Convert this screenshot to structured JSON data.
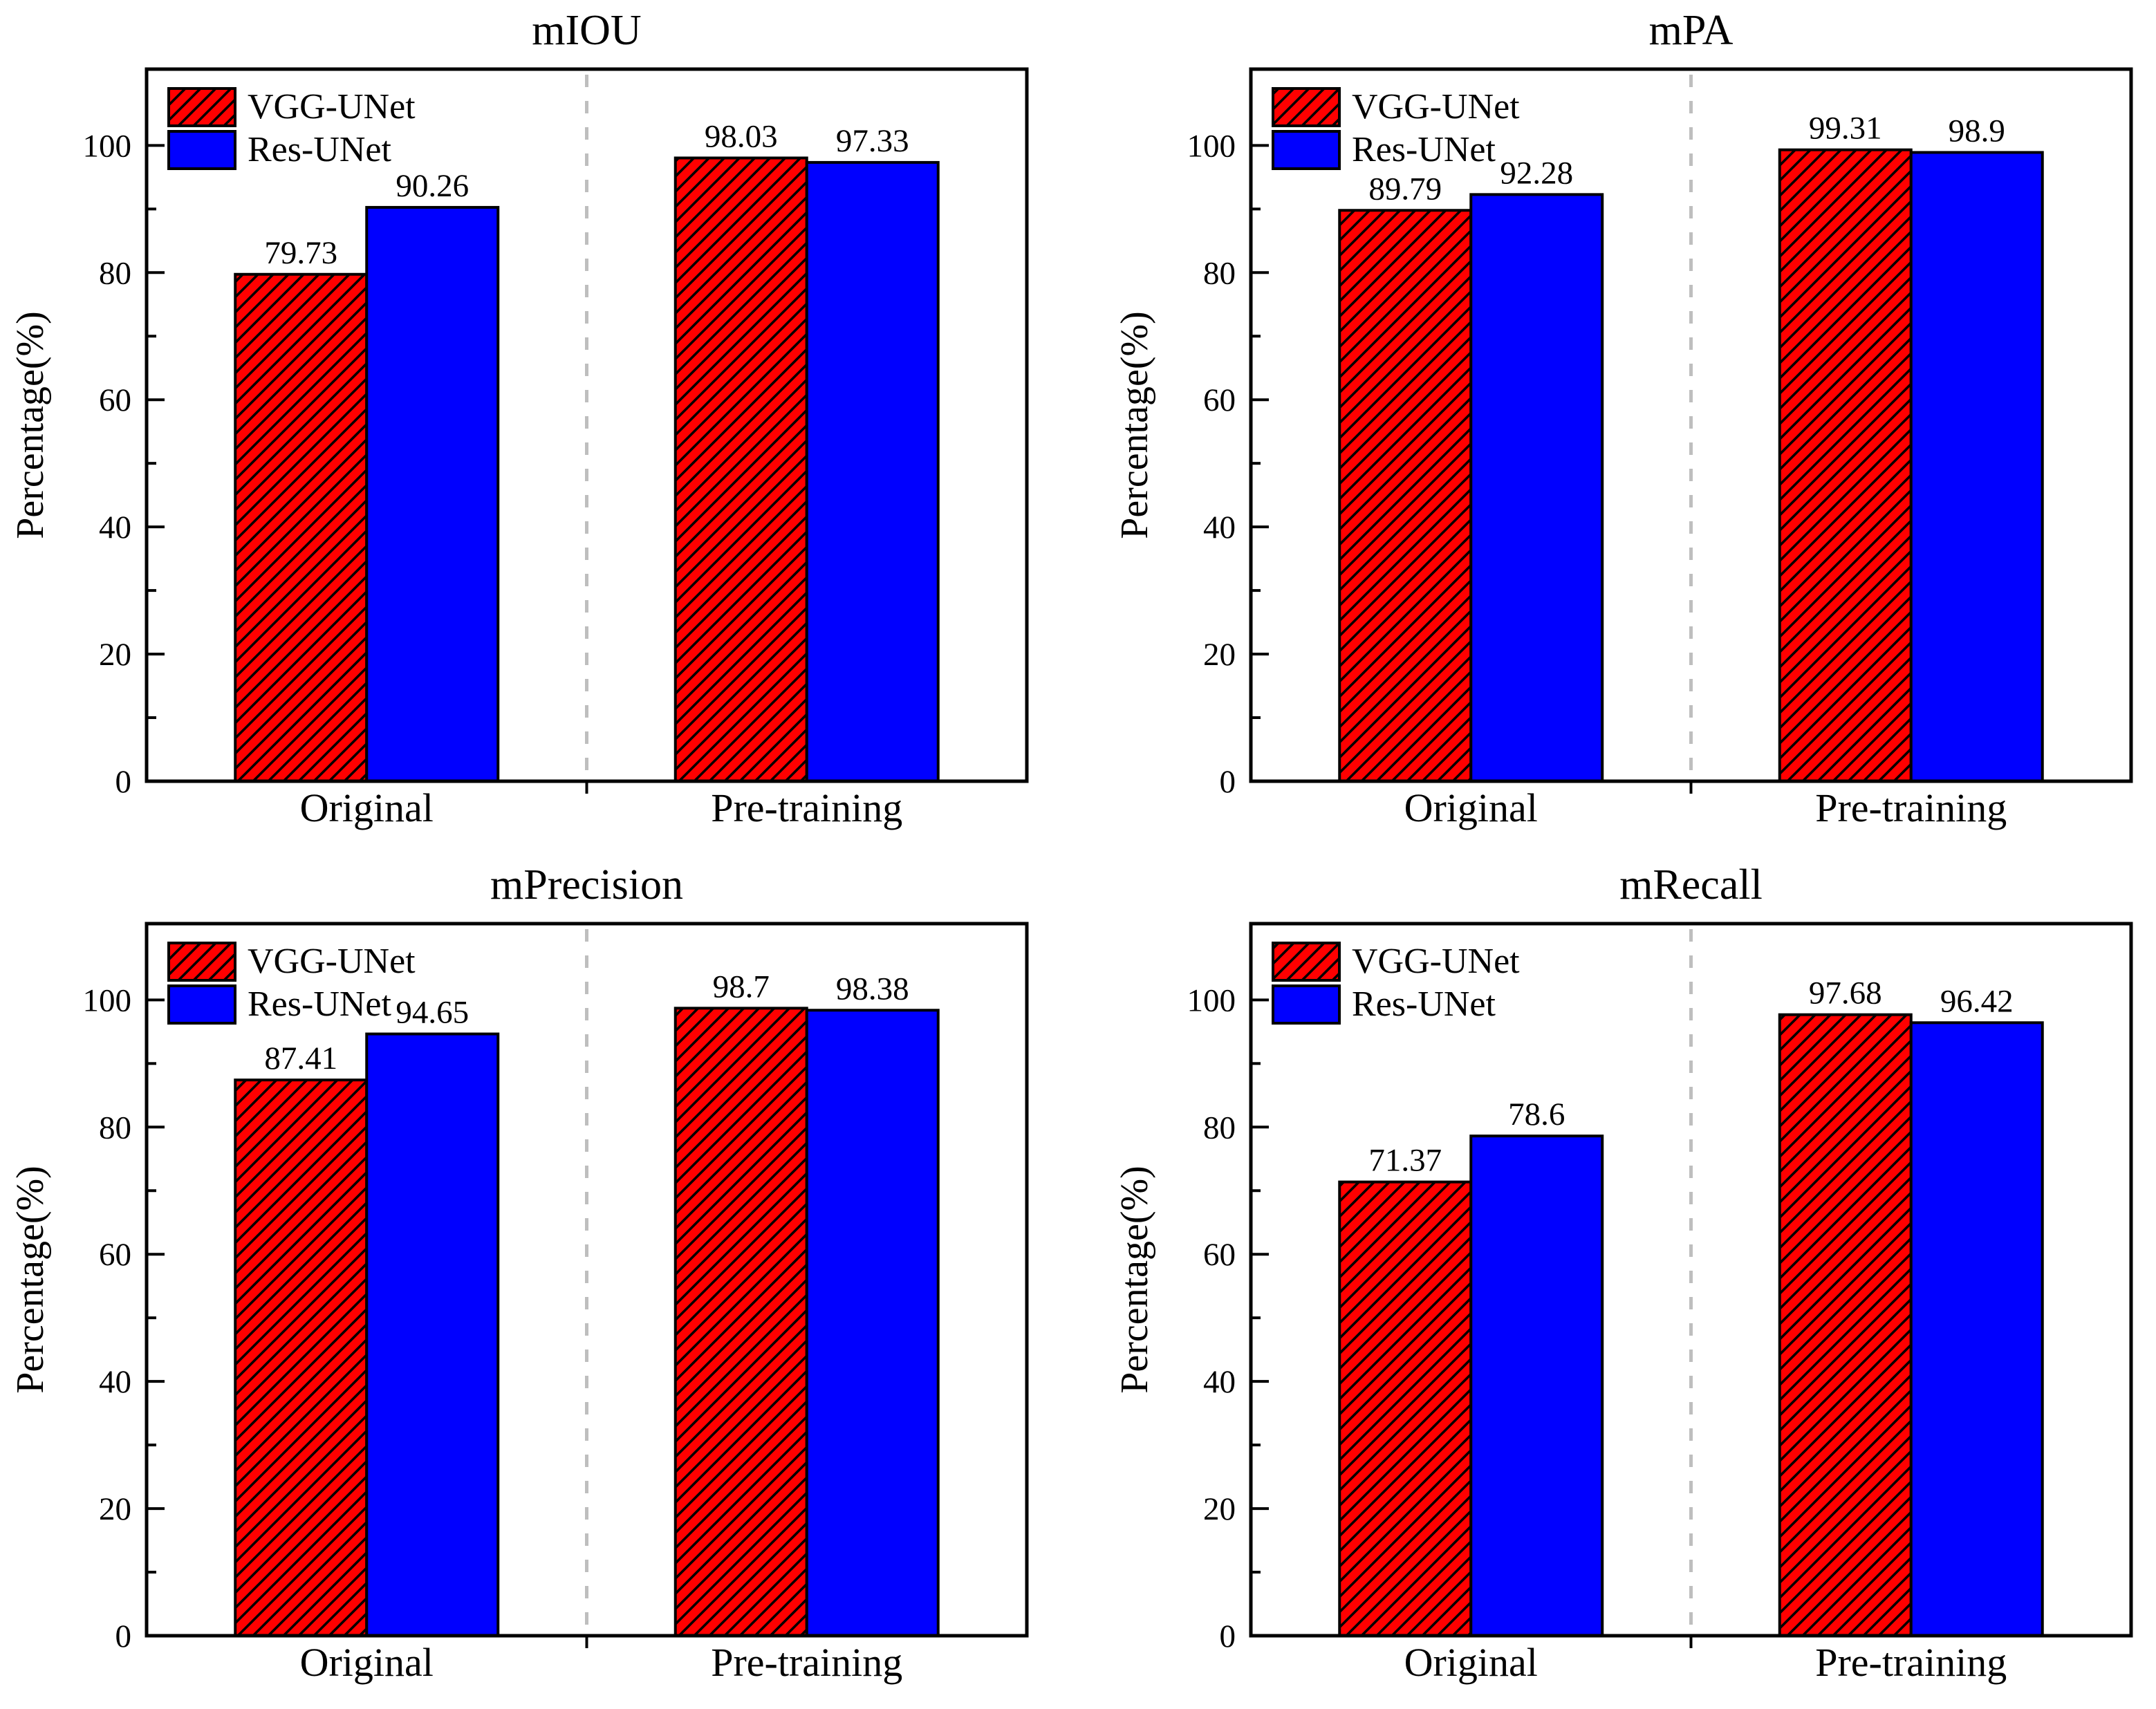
{
  "figure": {
    "ylabel": "Percentage(%)",
    "categories": [
      "Original",
      "Pre-training"
    ],
    "legend": [
      "VGG-UNet",
      "Res-UNet"
    ],
    "yticks": [
      0,
      20,
      40,
      60,
      80,
      100
    ],
    "minor_yticks": [
      10,
      30,
      50,
      70,
      90
    ],
    "ylim": [
      0,
      112
    ],
    "colors": {
      "vgg_fill": "#FF0000",
      "res_fill": "#0000FF",
      "bar_edge": "#000000",
      "text": "#000000",
      "divider": "#BEBEBE",
      "background": "#FFFFFF"
    }
  },
  "chart_data": [
    {
      "type": "bar",
      "title": "mIOU",
      "xlabel": "",
      "ylabel": "Percentage(%)",
      "categories": [
        "Original",
        "Pre-training"
      ],
      "series": [
        {
          "name": "VGG-UNet",
          "values": [
            79.73,
            98.03
          ]
        },
        {
          "name": "Res-UNet",
          "values": [
            90.26,
            97.33
          ]
        }
      ],
      "ylim": [
        0,
        112
      ],
      "yticks": [
        0,
        20,
        40,
        60,
        80,
        100
      ],
      "legend_position": "top-left",
      "grid": false
    },
    {
      "type": "bar",
      "title": "mPA",
      "xlabel": "",
      "ylabel": "Percentage(%)",
      "categories": [
        "Original",
        "Pre-training"
      ],
      "series": [
        {
          "name": "VGG-UNet",
          "values": [
            89.79,
            99.31
          ]
        },
        {
          "name": "Res-UNet",
          "values": [
            92.28,
            98.9
          ]
        }
      ],
      "ylim": [
        0,
        112
      ],
      "yticks": [
        0,
        20,
        40,
        60,
        80,
        100
      ],
      "legend_position": "top-left",
      "grid": false
    },
    {
      "type": "bar",
      "title": "mPrecision",
      "xlabel": "",
      "ylabel": "Percentage(%)",
      "categories": [
        "Original",
        "Pre-training"
      ],
      "series": [
        {
          "name": "VGG-UNet",
          "values": [
            87.41,
            98.7
          ]
        },
        {
          "name": "Res-UNet",
          "values": [
            94.65,
            98.38
          ]
        }
      ],
      "ylim": [
        0,
        112
      ],
      "yticks": [
        0,
        20,
        40,
        60,
        80,
        100
      ],
      "legend_position": "top-left",
      "grid": false
    },
    {
      "type": "bar",
      "title": "mRecall",
      "xlabel": "",
      "ylabel": "Percentage(%)",
      "categories": [
        "Original",
        "Pre-training"
      ],
      "series": [
        {
          "name": "VGG-UNet",
          "values": [
            71.37,
            97.68
          ]
        },
        {
          "name": "Res-UNet",
          "values": [
            78.6,
            96.42
          ]
        }
      ],
      "ylim": [
        0,
        112
      ],
      "yticks": [
        0,
        20,
        40,
        60,
        80,
        100
      ],
      "legend_position": "top-left",
      "grid": false
    }
  ]
}
